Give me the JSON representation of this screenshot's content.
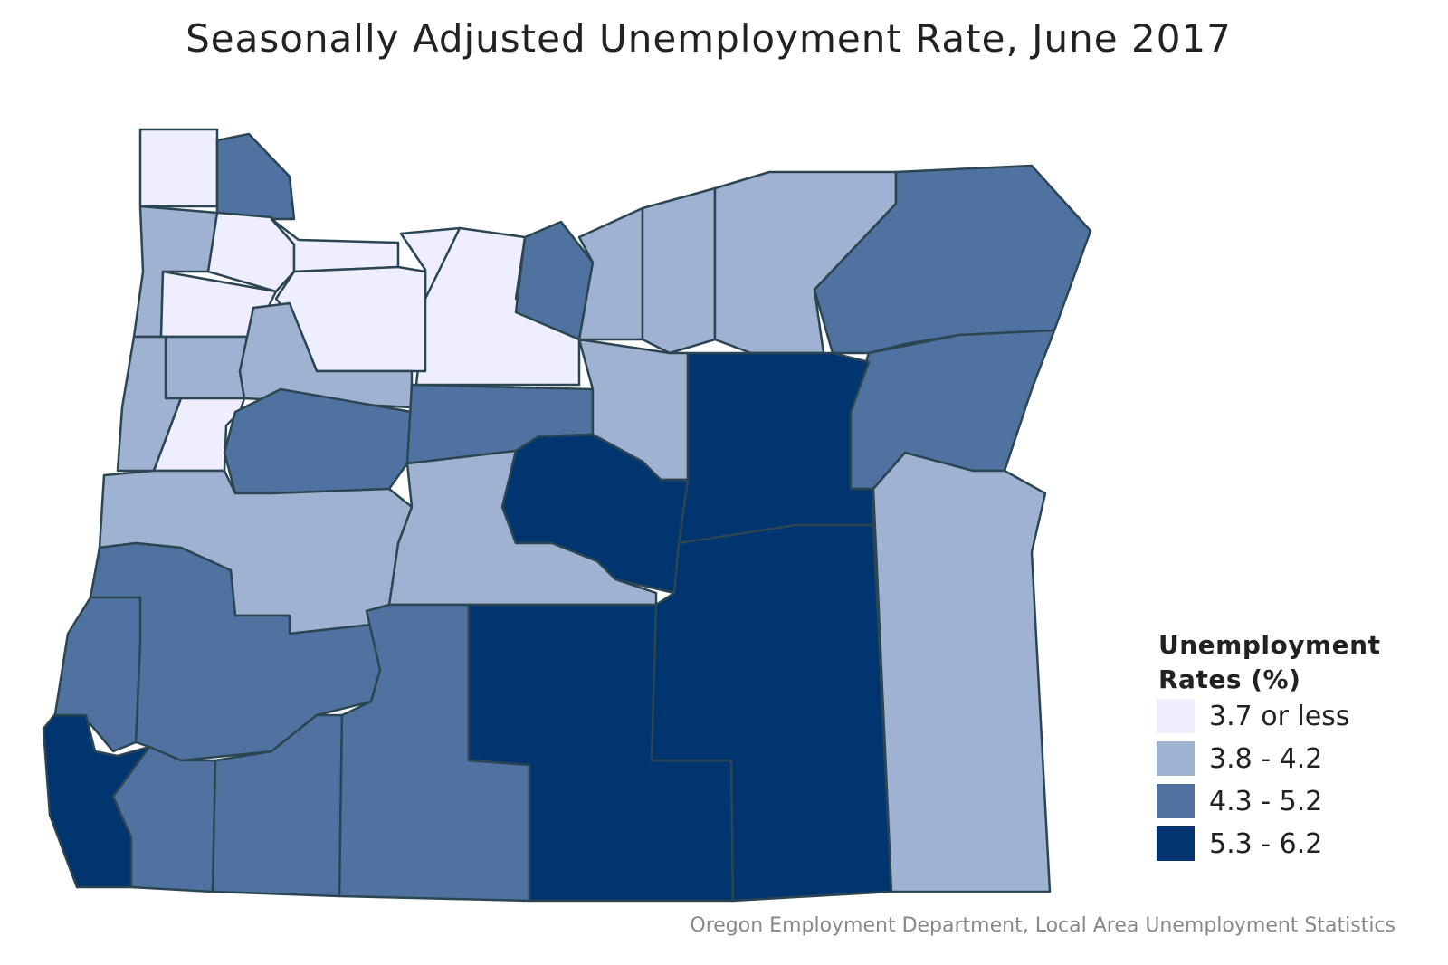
{
  "title": "Seasonally Adjusted Unemployment Rate, June 2017",
  "legend": {
    "title": "Unemployment Rates (%)",
    "items": [
      {
        "label": "3.7 or less",
        "color": "#eeeeff"
      },
      {
        "label": "3.8 - 4.2",
        "color": "#a0b2d2"
      },
      {
        "label": "4.3 - 5.2",
        "color": "#4f72a0"
      },
      {
        "label": "5.3 - 6.2",
        "color": "#003570"
      }
    ]
  },
  "source": "Oregon Employment Department, Local Area Unemployment Statistics"
}
